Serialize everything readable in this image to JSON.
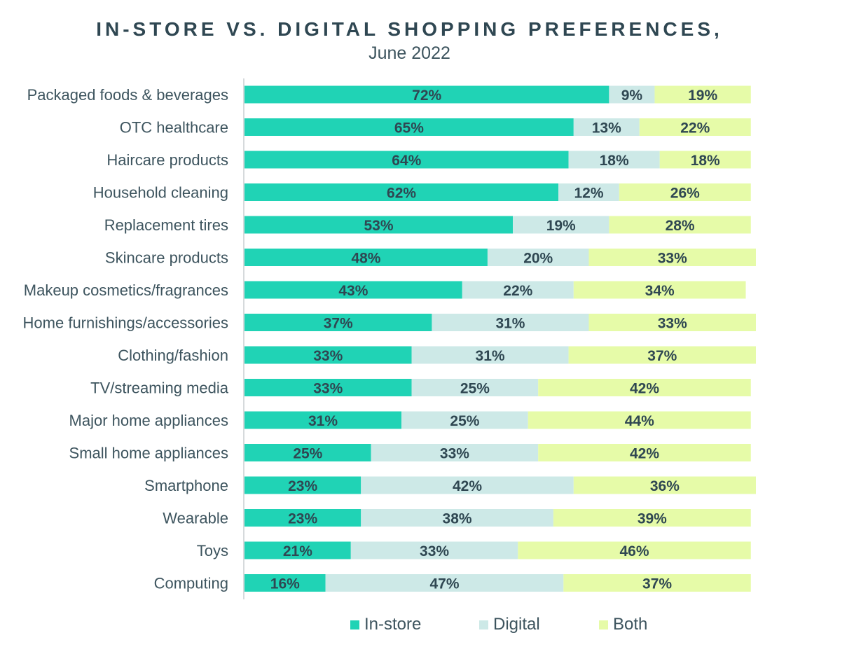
{
  "chart_data": {
    "type": "bar",
    "orientation": "horizontal",
    "stacked": true,
    "title": "IN-STORE VS. DIGITAL SHOPPING PREFERENCES,",
    "subtitle": "June 2022",
    "categories": [
      "Packaged foods & beverages",
      "OTC healthcare",
      "Haircare products",
      "Household cleaning",
      "Replacement tires",
      "Skincare products",
      "Makeup cosmetics/fragrances",
      "Home furnishings/accessories",
      "Clothing/fashion",
      "TV/streaming media",
      "Major home appliances",
      "Small home appliances",
      "Smartphone",
      "Wearable",
      "Toys",
      "Computing"
    ],
    "series": [
      {
        "name": "In-store",
        "color": "#20d3b5",
        "values": [
          72,
          65,
          64,
          62,
          53,
          48,
          43,
          37,
          33,
          33,
          31,
          25,
          23,
          23,
          21,
          16
        ]
      },
      {
        "name": "Digital",
        "color": "#cde9e7",
        "values": [
          9,
          13,
          18,
          12,
          19,
          20,
          22,
          31,
          31,
          25,
          25,
          33,
          42,
          38,
          33,
          47
        ]
      },
      {
        "name": "Both",
        "color": "#e6fba8",
        "values": [
          19,
          22,
          18,
          26,
          28,
          33,
          34,
          33,
          37,
          42,
          44,
          42,
          36,
          39,
          46,
          37
        ]
      }
    ],
    "value_suffix": "%",
    "xlim": [
      0,
      101
    ],
    "legend_position": "bottom"
  }
}
